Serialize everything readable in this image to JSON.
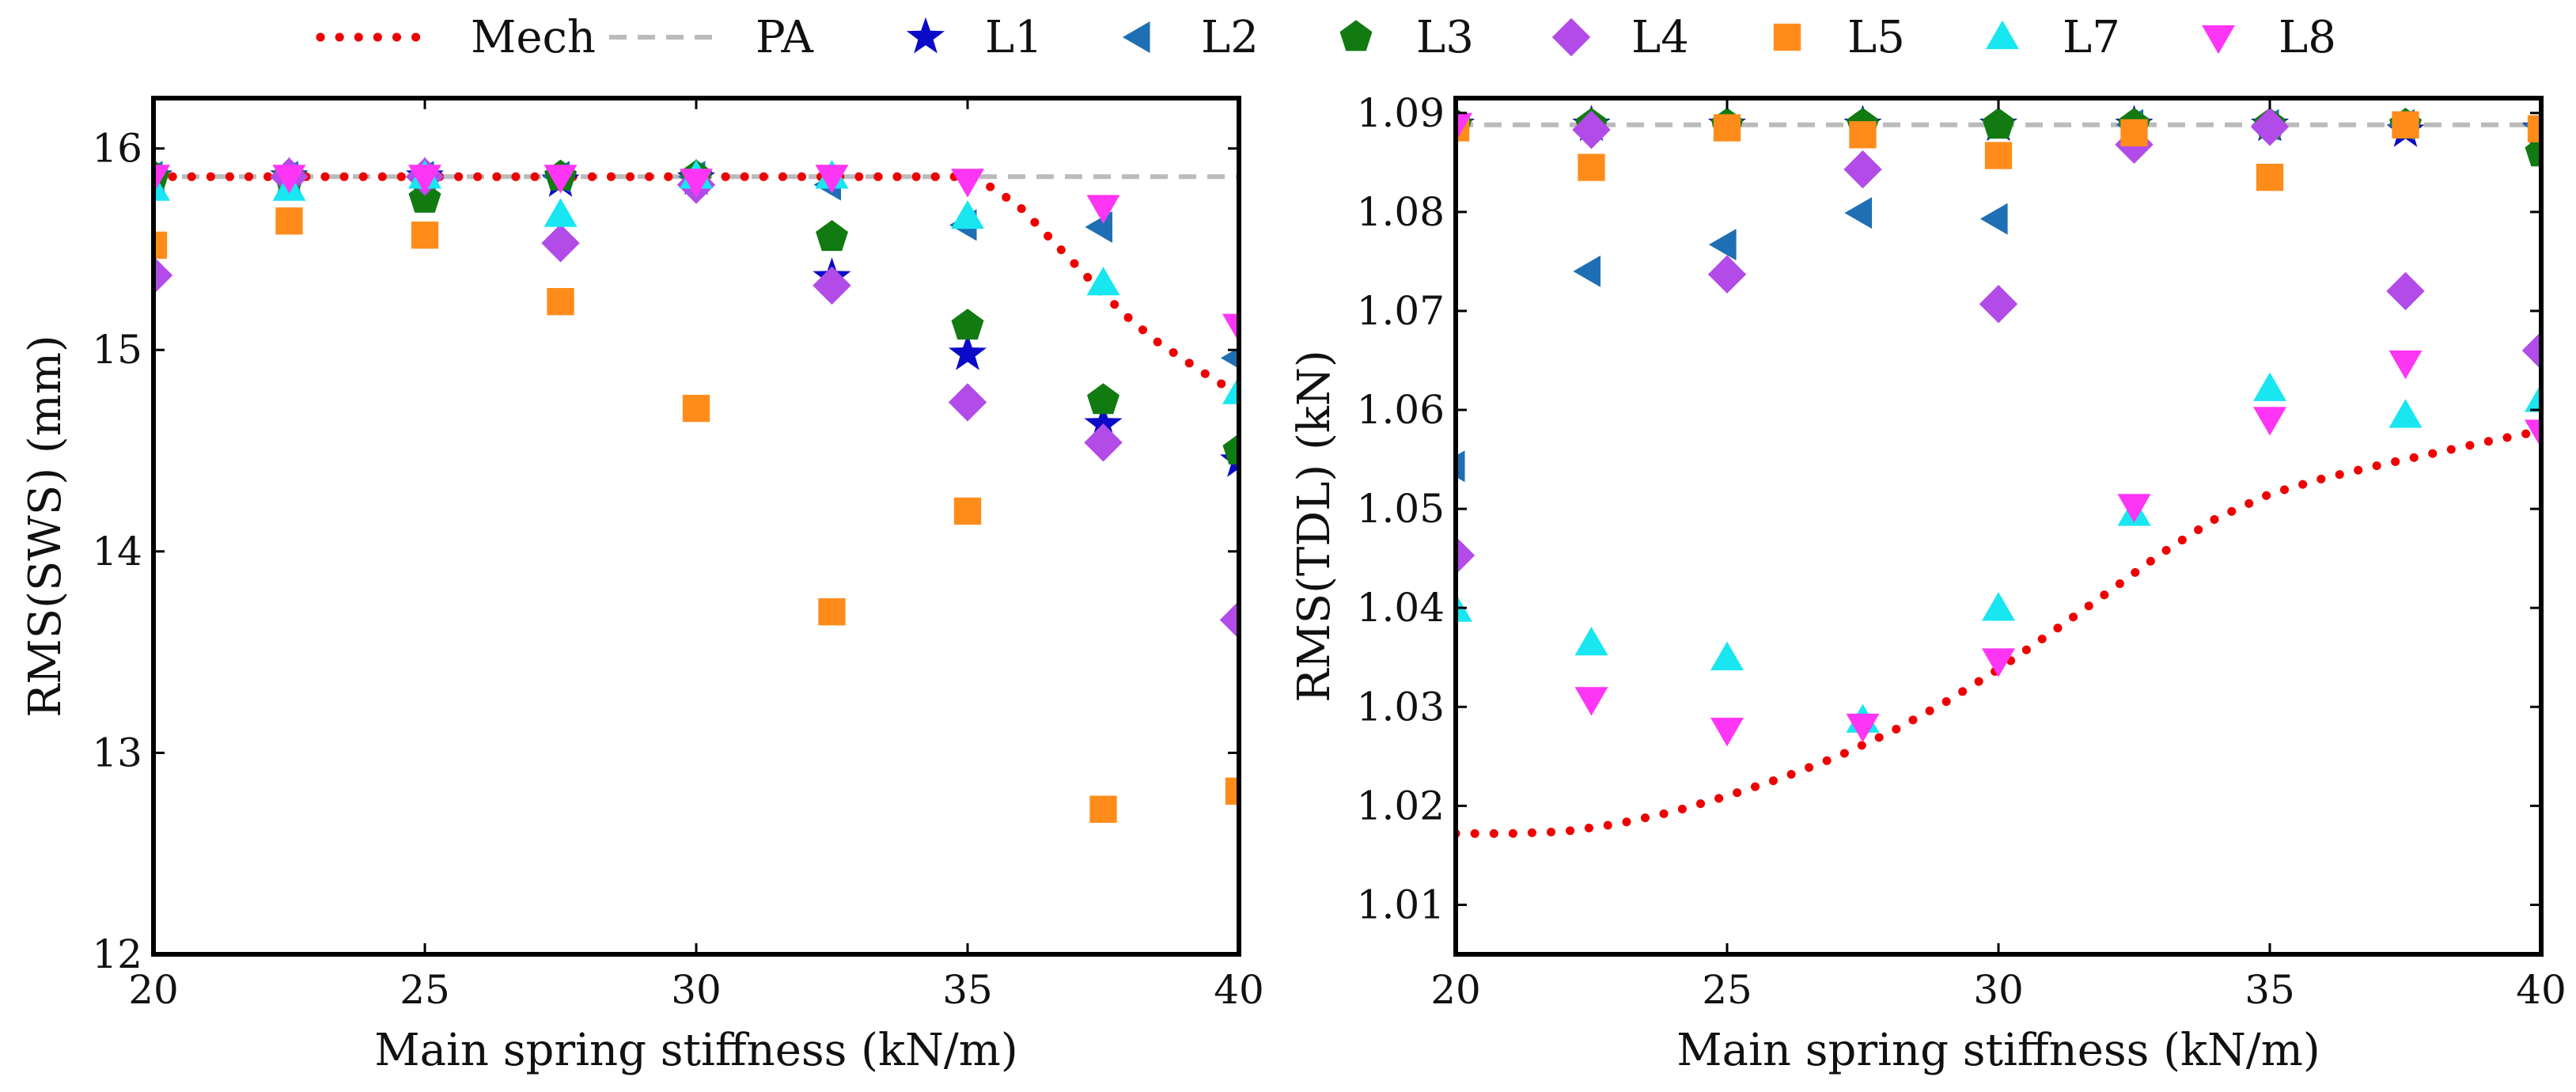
{
  "legend": [
    {
      "key": "Mech",
      "label": "Mech",
      "kind": "line",
      "color": "#ee0000",
      "dash": "dotted"
    },
    {
      "key": "PA",
      "label": "PA",
      "kind": "line",
      "color": "#bbbbbb",
      "dash": "dashed"
    },
    {
      "key": "L1",
      "label": "L1",
      "kind": "marker",
      "marker": "star",
      "color": "#0a0ac8"
    },
    {
      "key": "L2",
      "label": "L2",
      "kind": "marker",
      "marker": "tri-left",
      "color": "#1f6fb4"
    },
    {
      "key": "L3",
      "label": "L3",
      "kind": "marker",
      "marker": "pentagon",
      "color": "#117a11"
    },
    {
      "key": "L4",
      "label": "L4",
      "kind": "marker",
      "marker": "diamond",
      "color": "#b24be8"
    },
    {
      "key": "L5",
      "label": "L5",
      "kind": "marker",
      "marker": "square",
      "color": "#ff8c1a"
    },
    {
      "key": "L7",
      "label": "L7",
      "kind": "marker",
      "marker": "tri-up",
      "color": "#18e6f0"
    },
    {
      "key": "L8",
      "label": "L8",
      "kind": "marker",
      "marker": "tri-down",
      "color": "#ff35f5"
    }
  ],
  "chart_data": [
    {
      "type": "scatter",
      "id": "sws",
      "xlabel": "Main spring stiffness (kN/m)",
      "ylabel": "RMS(SWS) (mm)",
      "xlim": [
        20,
        40
      ],
      "ylim": [
        12,
        16.25
      ],
      "xticks": [
        20,
        25,
        30,
        35,
        40
      ],
      "yticks": [
        12,
        13,
        14,
        15,
        16
      ],
      "tick_decimals": 0,
      "x": [
        20,
        22.5,
        25,
        27.5,
        30,
        32.5,
        35,
        37.5,
        40
      ],
      "mech": {
        "x": [
          20,
          22,
          24,
          26,
          28,
          30,
          32,
          34,
          35,
          35.5,
          36,
          36.5,
          37,
          37.5,
          38,
          38.5,
          39,
          39.5,
          40
        ],
        "y": [
          15.86,
          15.86,
          15.86,
          15.86,
          15.86,
          15.86,
          15.86,
          15.86,
          15.86,
          15.8,
          15.7,
          15.56,
          15.42,
          15.28,
          15.15,
          15.04,
          14.95,
          14.86,
          14.78
        ]
      },
      "pa": 15.86,
      "series": [
        {
          "name": "L1",
          "values": [
            15.86,
            15.86,
            15.86,
            15.84,
            15.85,
            15.36,
            14.98,
            14.63,
            14.45
          ]
        },
        {
          "name": "L2",
          "values": [
            15.86,
            15.86,
            15.86,
            15.86,
            15.86,
            15.82,
            15.62,
            15.61,
            14.96
          ]
        },
        {
          "name": "L3",
          "values": [
            15.86,
            15.86,
            15.75,
            15.86,
            15.86,
            15.56,
            15.12,
            14.75,
            14.5
          ]
        },
        {
          "name": "L4",
          "values": [
            15.37,
            15.86,
            15.86,
            15.53,
            15.82,
            15.32,
            14.74,
            14.54,
            13.66
          ]
        },
        {
          "name": "L5",
          "values": [
            15.52,
            15.64,
            15.57,
            15.24,
            14.71,
            13.7,
            14.2,
            12.72,
            12.81
          ]
        },
        {
          "name": "L7",
          "values": [
            15.8,
            15.8,
            15.86,
            15.67,
            15.86,
            15.86,
            15.66,
            15.33,
            14.79
          ]
        },
        {
          "name": "L8",
          "values": [
            15.86,
            15.86,
            15.86,
            15.86,
            15.84,
            15.86,
            15.84,
            15.71,
            15.12
          ]
        }
      ]
    },
    {
      "type": "scatter",
      "id": "tdl",
      "xlabel": "Main spring stiffness (kN/m)",
      "ylabel": "RMS(TDL) (kN)",
      "xlim": [
        20,
        40
      ],
      "ylim": [
        1.005,
        1.0915
      ],
      "xticks": [
        20,
        25,
        30,
        35,
        40
      ],
      "yticks": [
        1.01,
        1.02,
        1.03,
        1.04,
        1.05,
        1.06,
        1.07,
        1.08,
        1.09
      ],
      "tick_decimals": 2,
      "x": [
        20,
        22.5,
        25,
        27.5,
        30,
        32.5,
        35,
        37.5,
        40
      ],
      "mech": {
        "x": [
          20,
          21,
          22,
          23,
          24,
          25,
          26,
          27,
          28,
          29,
          30,
          31,
          32,
          33,
          34,
          35,
          36,
          37,
          38,
          39,
          40
        ],
        "y": [
          1.0172,
          1.0172,
          1.0174,
          1.0182,
          1.0194,
          1.021,
          1.0228,
          1.0249,
          1.0274,
          1.0304,
          1.0338,
          1.0376,
          1.0415,
          1.0455,
          1.049,
          1.0515,
          1.0531,
          1.0544,
          1.0556,
          1.0568,
          1.0579
        ]
      },
      "pa": 1.0888,
      "series": [
        {
          "name": "L1",
          "values": [
            1.0888,
            1.0888,
            1.0888,
            1.0888,
            1.0888,
            1.0888,
            1.0888,
            1.0882,
            1.0884
          ]
        },
        {
          "name": "L2",
          "values": [
            1.0543,
            1.074,
            1.0767,
            1.0799,
            1.0793,
            1.0888,
            1.0888,
            1.0888,
            1.0888
          ]
        },
        {
          "name": "L3",
          "values": [
            1.0888,
            1.0888,
            1.0888,
            1.0888,
            1.0888,
            1.0888,
            1.0888,
            1.0888,
            1.086
          ]
        },
        {
          "name": "L4",
          "values": [
            1.0453,
            1.0883,
            1.0737,
            1.0843,
            1.0707,
            1.0868,
            1.0886,
            1.072,
            1.066
          ]
        },
        {
          "name": "L5",
          "values": [
            1.0885,
            1.0845,
            1.0885,
            1.0878,
            1.0857,
            1.088,
            1.0835,
            1.0888,
            1.0884
          ]
        },
        {
          "name": "L7",
          "values": [
            1.0398,
            1.0364,
            1.0349,
            1.0286,
            1.0399,
            1.0495,
            1.0621,
            1.0594,
            1.061
          ]
        },
        {
          "name": "L8",
          "values": [
            1.0888,
            1.0308,
            1.0277,
            1.0281,
            1.0347,
            1.0503,
            1.0591,
            1.0648,
            1.0578
          ]
        }
      ]
    }
  ]
}
